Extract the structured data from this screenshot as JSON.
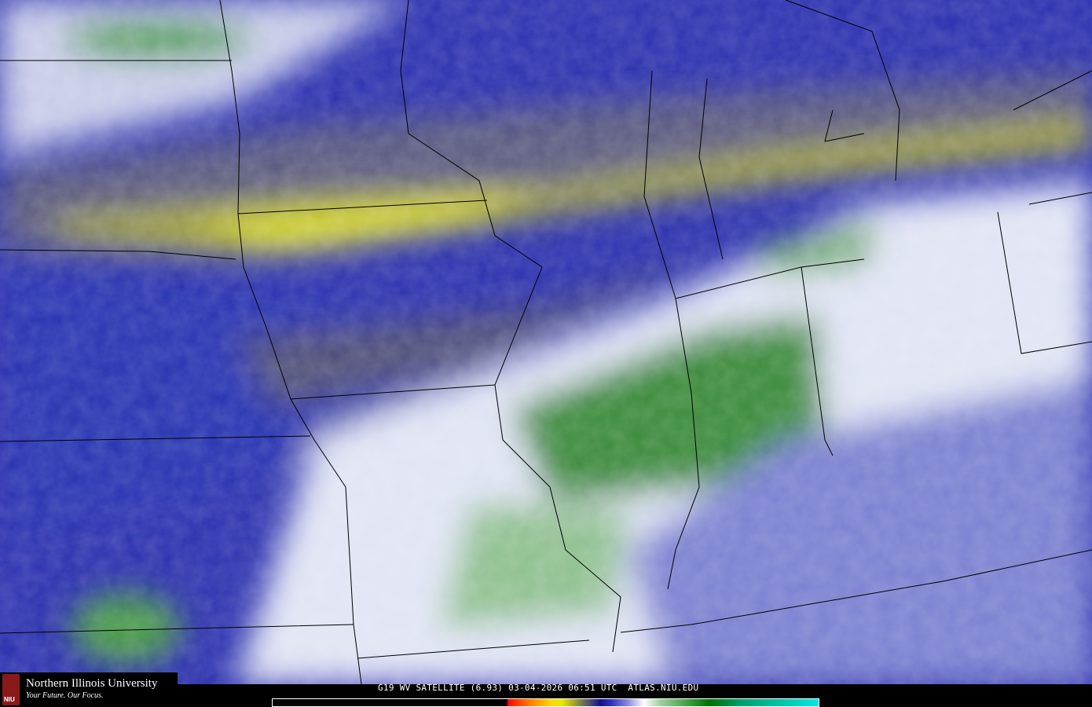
{
  "caption": "G19 WV SATELLITE (6.93) 03-04-2026 06:51 UTC  ATLAS.NIU.EDU",
  "logo": {
    "name": "Northern Illinois University",
    "tagline": "Your Future. Our Focus.",
    "emblem": "NIU"
  },
  "colorbar_colors": [
    "#000000",
    "#ff0000",
    "#ff7a00",
    "#ffd800",
    "#e8e800",
    "#8a8a40",
    "#505070",
    "#10108a",
    "#3030c0",
    "#8888dd",
    "#ffffff",
    "#a0d0a0",
    "#40a040",
    "#007000",
    "#00a070",
    "#00e8e0"
  ]
}
